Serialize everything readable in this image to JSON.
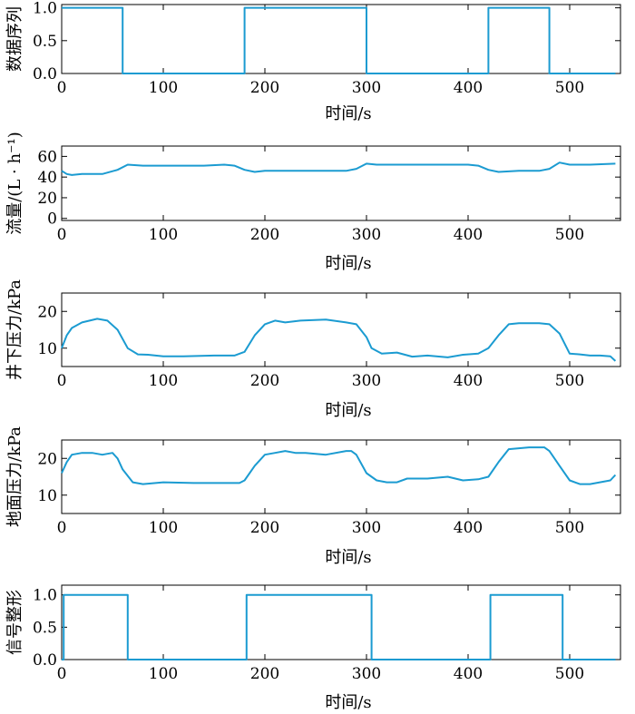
{
  "colors": {
    "series": "#1b9bd1",
    "axis": "#000000"
  },
  "chart_data": [
    {
      "type": "line",
      "id": "data-sequence",
      "ylabel": "数据序列",
      "xlabel": "时间/s",
      "xlim": [
        0,
        550
      ],
      "ylim": [
        0,
        1.05
      ],
      "xticks": [
        0,
        100,
        200,
        300,
        400,
        500
      ],
      "yticks": [
        0,
        0.5,
        1.0
      ],
      "ytick_labels": [
        "0.0",
        "0.5",
        "1.0"
      ],
      "step": true,
      "series": [
        {
          "x": [
            0,
            60,
            60,
            180,
            180,
            300,
            300,
            420,
            420,
            480,
            480,
            545
          ],
          "y": [
            1,
            1,
            0,
            0,
            1,
            1,
            0,
            0,
            1,
            1,
            0,
            0
          ]
        }
      ]
    },
    {
      "type": "line",
      "id": "flow",
      "ylabel": "流量/(L · h⁻¹)",
      "xlabel": "时间/s",
      "xlim": [
        0,
        550
      ],
      "ylim": [
        -2,
        70
      ],
      "xticks": [
        0,
        100,
        200,
        300,
        400,
        500
      ],
      "yticks": [
        0,
        20,
        40,
        60
      ],
      "ytick_labels": [
        "0",
        "20",
        "40",
        "60"
      ],
      "series": [
        {
          "x": [
            0,
            5,
            10,
            20,
            40,
            55,
            65,
            80,
            100,
            120,
            140,
            160,
            170,
            180,
            190,
            200,
            250,
            280,
            290,
            300,
            310,
            330,
            360,
            400,
            410,
            420,
            430,
            450,
            470,
            480,
            490,
            500,
            520,
            545
          ],
          "y": [
            46,
            43,
            42,
            43,
            43,
            47,
            52,
            51,
            51,
            51,
            51,
            52,
            51,
            47,
            45,
            46,
            46,
            46,
            48,
            53,
            52,
            52,
            52,
            52,
            51,
            47,
            45,
            46,
            46,
            48,
            54,
            52,
            52,
            53
          ]
        }
      ]
    },
    {
      "type": "line",
      "id": "downhole-pressure",
      "ylabel": "井下压力/kPa",
      "xlabel": "时间/s",
      "xlim": [
        0,
        550
      ],
      "ylim": [
        5,
        25
      ],
      "xticks": [
        0,
        100,
        200,
        300,
        400,
        500
      ],
      "yticks": [
        10,
        20
      ],
      "ytick_labels": [
        "10",
        "20"
      ],
      "series": [
        {
          "x": [
            0,
            5,
            10,
            20,
            35,
            45,
            55,
            65,
            75,
            85,
            100,
            120,
            150,
            170,
            180,
            190,
            200,
            210,
            220,
            235,
            260,
            280,
            290,
            300,
            305,
            315,
            330,
            345,
            360,
            380,
            395,
            410,
            420,
            430,
            440,
            450,
            470,
            480,
            490,
            500,
            510,
            520,
            530,
            540,
            545
          ],
          "y": [
            10,
            13.5,
            15.5,
            17,
            18,
            17.5,
            15,
            10,
            8.3,
            8.2,
            7.8,
            7.8,
            8,
            8,
            9,
            13.5,
            16.5,
            17.5,
            17,
            17.5,
            17.8,
            17,
            16.5,
            13,
            10,
            8.5,
            8.8,
            7.7,
            8,
            7.5,
            8.2,
            8.5,
            10,
            13.5,
            16.5,
            16.8,
            16.8,
            16.5,
            14,
            8.5,
            8.3,
            8,
            8,
            7.8,
            6.5
          ]
        }
      ]
    },
    {
      "type": "line",
      "id": "surface-pressure",
      "ylabel": "地面压力/kPa",
      "xlabel": "时间/s",
      "xlim": [
        0,
        550
      ],
      "ylim": [
        5,
        25
      ],
      "xticks": [
        0,
        100,
        200,
        300,
        400,
        500
      ],
      "yticks": [
        10,
        20
      ],
      "ytick_labels": [
        "10",
        "20"
      ],
      "series": [
        {
          "x": [
            0,
            5,
            10,
            20,
            30,
            40,
            50,
            55,
            60,
            70,
            80,
            100,
            130,
            160,
            175,
            180,
            190,
            200,
            210,
            220,
            230,
            240,
            260,
            280,
            285,
            290,
            300,
            310,
            320,
            330,
            340,
            360,
            380,
            395,
            410,
            420,
            430,
            440,
            460,
            475,
            480,
            490,
            500,
            510,
            520,
            540,
            545
          ],
          "y": [
            16,
            19,
            21,
            21.5,
            21.5,
            21,
            21.5,
            20,
            17,
            13.5,
            13,
            13.5,
            13.3,
            13.3,
            13.3,
            14,
            18,
            21,
            21.5,
            22,
            21.5,
            21.5,
            21,
            22,
            22,
            21,
            16,
            14,
            13.5,
            13.5,
            14.5,
            14.5,
            15,
            14,
            14.3,
            15,
            19,
            22.5,
            23,
            23,
            22,
            18,
            14,
            13,
            13,
            14,
            15.5
          ]
        }
      ]
    },
    {
      "type": "line",
      "id": "signal-shaping",
      "ylabel": "信号整形",
      "xlabel": "时间/s",
      "xlim": [
        0,
        550
      ],
      "ylim": [
        0,
        1.15
      ],
      "xticks": [
        0,
        100,
        200,
        300,
        400,
        500
      ],
      "yticks": [
        0,
        0.5,
        1.0
      ],
      "ytick_labels": [
        "0.0",
        "0.5",
        "1.0"
      ],
      "step": true,
      "series": [
        {
          "x": [
            0,
            2,
            2,
            65,
            65,
            182,
            182,
            305,
            305,
            422,
            422,
            493,
            493,
            545
          ],
          "y": [
            0,
            0,
            1,
            1,
            0,
            0,
            1,
            1,
            0,
            0,
            1,
            1,
            0,
            0
          ]
        }
      ]
    }
  ]
}
